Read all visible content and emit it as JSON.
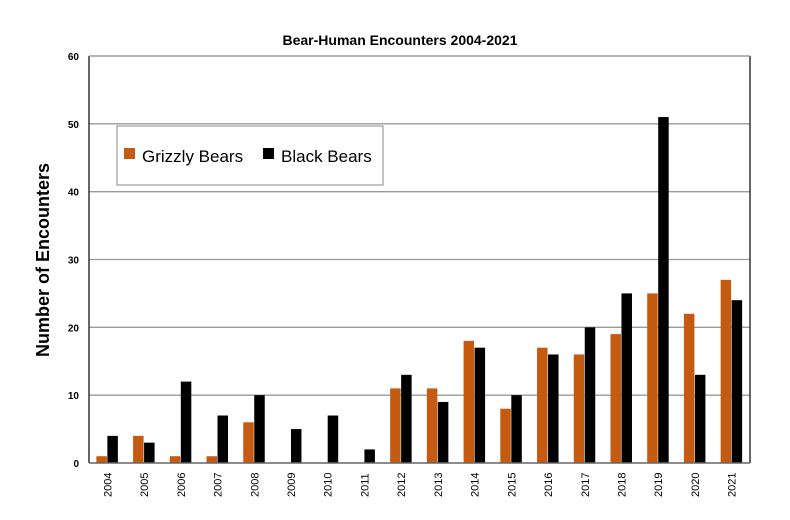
{
  "chart_data": {
    "type": "bar",
    "title": "Bear-Human Encounters 2004-2021",
    "xlabel": "",
    "ylabel": "Number of Encounters",
    "ylim": [
      0,
      60
    ],
    "yticks": [
      0,
      10,
      20,
      30,
      40,
      50,
      60
    ],
    "grid": true,
    "legend_position": "top-left",
    "categories": [
      "2004",
      "2005",
      "2006",
      "2007",
      "2008",
      "2009",
      "2010",
      "2011",
      "2012",
      "2013",
      "2014",
      "2015",
      "2016",
      "2017",
      "2018",
      "2019",
      "2020",
      "2021"
    ],
    "series": [
      {
        "name": "Grizzly Bears",
        "color": "#c55a11",
        "values": [
          1,
          4,
          1,
          1,
          6,
          0,
          0,
          0,
          11,
          11,
          18,
          8,
          17,
          16,
          19,
          25,
          22,
          27
        ]
      },
      {
        "name": "Black Bears",
        "color": "#000000",
        "values": [
          4,
          3,
          12,
          7,
          10,
          5,
          7,
          2,
          13,
          9,
          17,
          10,
          16,
          20,
          25,
          51,
          13,
          24
        ]
      }
    ]
  }
}
